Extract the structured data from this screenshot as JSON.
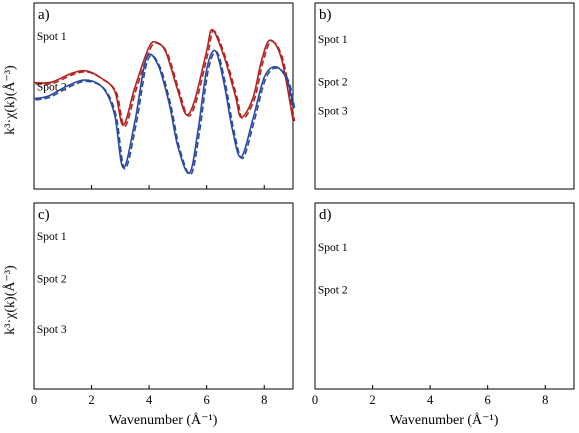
{
  "figure": {
    "y_axis_label": "k³·χ(k)(Å⁻³)",
    "x_axis_label": "Wavenumber (Å⁻¹)"
  },
  "chart_data": [
    {
      "type": "line",
      "panel": "a)",
      "xlim": [
        0,
        9
      ],
      "xticks": [
        "0",
        "2",
        "4",
        "6",
        "8"
      ],
      "series": [
        {
          "name": "Spot 1",
          "color": "#b22222",
          "label_at": [
            0.1,
            1.6
          ],
          "x": [
            0,
            0.6,
            1.3,
            1.8,
            2.3,
            2.8,
            3.1,
            3.5,
            4.0,
            4.3,
            4.6,
            5.0,
            5.3,
            5.6,
            6.0,
            6.2,
            6.6,
            7.0,
            7.2,
            7.6,
            7.9,
            8.2,
            8.6,
            9.0
          ],
          "y": [
            0.0,
            0.02,
            0.35,
            0.45,
            0.2,
            -0.3,
            -1.6,
            -0.2,
            1.35,
            1.5,
            1.1,
            -0.3,
            -1.2,
            -0.6,
            1.2,
            2.0,
            1.0,
            -0.5,
            -1.3,
            -0.6,
            0.8,
            1.6,
            0.9,
            -1.4
          ]
        }
      ]
    },
    {
      "type": "line",
      "panel": "a)",
      "xlim": [
        0,
        9
      ],
      "series": [
        {
          "name": "Spot 2",
          "color": "#2b4a9e",
          "label_at": [
            0.1,
            -0.3
          ],
          "x": [
            0,
            0.5,
            1.2,
            1.8,
            2.4,
            2.8,
            3.1,
            3.5,
            3.9,
            4.3,
            4.7,
            5.0,
            5.4,
            5.7,
            6.0,
            6.3,
            6.6,
            6.9,
            7.2,
            7.6,
            8.0,
            8.4,
            8.8,
            9.0
          ],
          "y": [
            -0.6,
            -0.5,
            -0.1,
            0.1,
            -0.2,
            -1.2,
            -3.2,
            -1.5,
            0.9,
            0.7,
            -0.8,
            -2.4,
            -3.4,
            -1.8,
            0.5,
            1.2,
            0.0,
            -1.8,
            -2.8,
            -1.4,
            0.2,
            0.6,
            0.1,
            -0.9
          ]
        }
      ]
    },
    {
      "type": "line",
      "panel": "b)",
      "xlim": [
        0,
        9
      ],
      "series": [
        {
          "name": "Spot 1",
          "color": "#d62728",
          "label_at": [
            0.1,
            1.5
          ]
        },
        {
          "name": "Spot 2",
          "color": "#2b4a9e",
          "label_at": [
            0.1,
            -0.1
          ]
        },
        {
          "name": "Spot 3",
          "color": "#2ca02c",
          "label_at": [
            0.1,
            -1.2
          ]
        }
      ]
    },
    {
      "type": "line",
      "panel": "c)",
      "xlim": [
        0,
        9
      ],
      "xticks": [
        "0",
        "2",
        "4",
        "6",
        "8"
      ],
      "series": [
        {
          "name": "Spot 1",
          "color": "#b22222",
          "label_at": [
            0.1,
            1.6
          ]
        },
        {
          "name": "Spot 2",
          "color": "#2b4a9e",
          "label_at": [
            0.1,
            0.0
          ]
        },
        {
          "name": "Spot 3",
          "color": "#2ca02c",
          "label_at": [
            0.1,
            -1.9
          ]
        }
      ]
    },
    {
      "type": "line",
      "panel": "d)",
      "xlim": [
        0,
        9
      ],
      "xticks": [
        "0",
        "2",
        "4",
        "6",
        "8"
      ],
      "series": [
        {
          "name": "Spot 1",
          "color": "#d62728",
          "label_at": [
            0.1,
            1.2
          ]
        },
        {
          "name": "Spot 2",
          "color": "#2b4a9e",
          "label_at": [
            0.1,
            -0.4
          ]
        }
      ]
    }
  ]
}
